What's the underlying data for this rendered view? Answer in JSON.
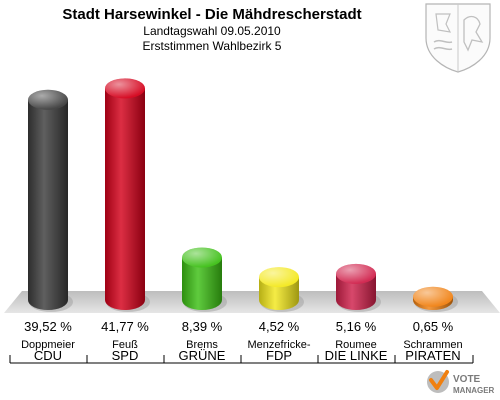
{
  "chart_data": {
    "type": "bar",
    "title": "Stadt Harsewinkel - Die Mähdrescherstadt",
    "subtitle_1": "Landtagswahl 09.05.2010",
    "subtitle_2": "Erststimmen Wahlbezirk 5",
    "categories": [
      "CDU",
      "SPD",
      "GRÜNE",
      "FDP",
      "DIE LINKE",
      "PIRATEN"
    ],
    "candidates": [
      "Doppmeier",
      "Feuß",
      "Brems",
      "Menzefricke-",
      "Roumee",
      "Schrammen"
    ],
    "values": [
      39.52,
      41.77,
      8.39,
      4.52,
      5.16,
      0.65
    ],
    "value_labels": [
      "39,52 %",
      "41,77 %",
      "8,39 %",
      "4,52 %",
      "5,16 %",
      "0,65 %"
    ],
    "colors": [
      "#3c3c3c",
      "#d4001a",
      "#3cbf14",
      "#f3e81c",
      "#d0204a",
      "#f08010"
    ],
    "ylim": [
      0,
      45
    ],
    "grid": false,
    "legend": "none"
  },
  "branding": {
    "line1": "VOTE",
    "line2": "MANAGER",
    "accent": "#f08010"
  },
  "emblem": {
    "icon": "coat-of-arms-icon"
  }
}
